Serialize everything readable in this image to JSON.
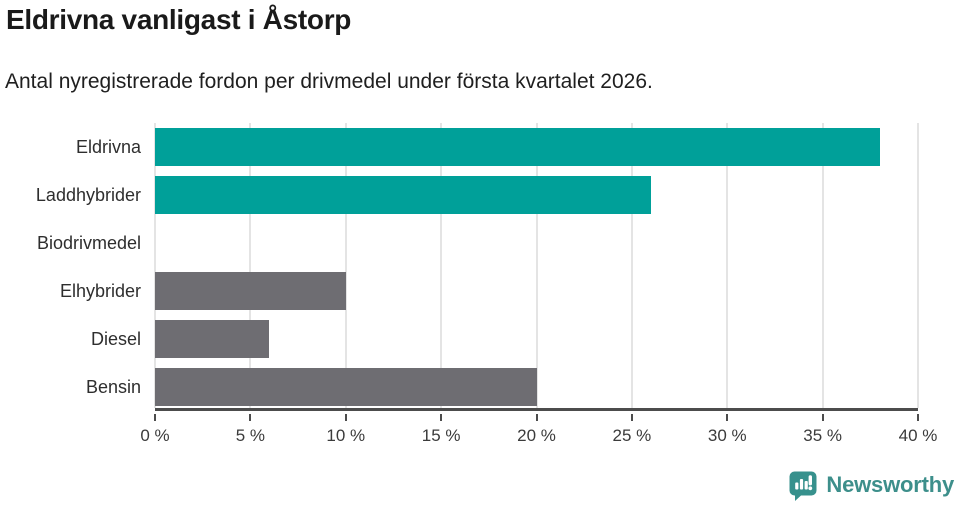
{
  "title": "Eldrivna vanligast i Åstorp",
  "subtitle": "Antal nyregistrerade fordon per drivmedel under första kvartalet 2026.",
  "chart_data": {
    "type": "bar",
    "orientation": "horizontal",
    "title": "Eldrivna vanligast i Åstorp",
    "subtitle": "Antal nyregistrerade fordon per drivmedel under första kvartalet 2026.",
    "categories": [
      "Eldrivna",
      "Laddhybrider",
      "Biodrivmedel",
      "Elhybrider",
      "Diesel",
      "Bensin"
    ],
    "values": [
      38,
      26,
      0,
      10,
      6,
      20
    ],
    "unit": "%",
    "xlim": [
      0,
      40
    ],
    "x_ticks": [
      0,
      5,
      10,
      15,
      20,
      25,
      30,
      35,
      40
    ],
    "x_tick_suffix": " %",
    "bar_colors": [
      "#00a099",
      "#00a099",
      "#6e6d72",
      "#6e6d72",
      "#6e6d72",
      "#6e6d72"
    ],
    "highlight_color": "#00a099",
    "default_color": "#6e6d72",
    "grid": true,
    "gridline_color": "#e4e4e4",
    "axis_line_color": "#4c4c4c",
    "legend": false
  },
  "logo": {
    "text": "Newsworthy",
    "icon": "newsworthy-speech-bubble-chart-icon",
    "text_color": "#3d8f8b",
    "icon_color": "#37918d"
  }
}
